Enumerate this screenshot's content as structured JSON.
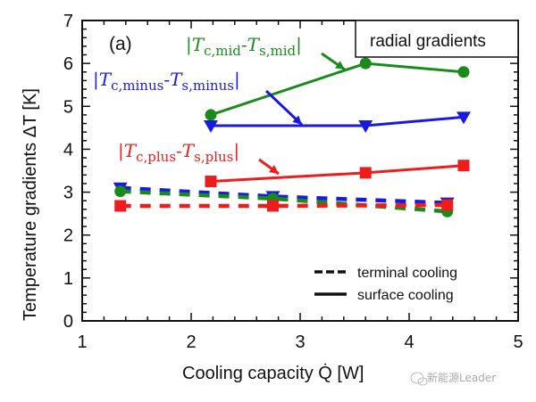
{
  "chart_data": {
    "type": "line",
    "panel_label": "(a)",
    "xlabel": "Cooling capacity Q̇ [W]",
    "ylabel": "Temperature gradients ΔT [K]",
    "xlim": [
      1,
      5
    ],
    "ylim": [
      0,
      7
    ],
    "xticks": [
      "1",
      "2",
      "3",
      "4",
      "5"
    ],
    "yticks": [
      "0",
      "1",
      "2",
      "3",
      "4",
      "5",
      "6",
      "7"
    ],
    "box_label": "radial gradients",
    "legend": {
      "placement": "bottom-right",
      "entries": [
        {
          "label": "terminal cooling",
          "style": "dashed"
        },
        {
          "label": "surface cooling",
          "style": "solid"
        }
      ]
    },
    "series": [
      {
        "name": "|T_c,mid - T_s,mid| surface",
        "group": "mid",
        "style": "solid",
        "marker": "circle",
        "color": "#1a8a1a",
        "x": [
          2.18,
          3.6,
          4.5
        ],
        "y": [
          4.8,
          6.0,
          5.8
        ]
      },
      {
        "name": "|T_c,minus - T_s,minus| surface",
        "group": "minus",
        "style": "solid",
        "marker": "triangle-down",
        "color": "#1a1adf",
        "x": [
          2.18,
          3.6,
          4.5
        ],
        "y": [
          4.55,
          4.55,
          4.75
        ]
      },
      {
        "name": "|T_c,plus - T_s,plus| surface",
        "group": "plus",
        "style": "solid",
        "marker": "square",
        "color": "#ee1c1c",
        "x": [
          2.18,
          3.6,
          4.5
        ],
        "y": [
          3.25,
          3.45,
          3.62
        ]
      },
      {
        "name": "|T_c,minus - T_s,minus| terminal",
        "group": "minus",
        "style": "dashed",
        "marker": "triangle-down",
        "color": "#1a1adf",
        "x": [
          1.35,
          2.75,
          4.35
        ],
        "y": [
          3.1,
          2.9,
          2.75
        ]
      },
      {
        "name": "|T_c,mid - T_s,mid| terminal",
        "group": "mid",
        "style": "dashed",
        "marker": "circle",
        "color": "#1a8a1a",
        "x": [
          1.35,
          2.75,
          4.35
        ],
        "y": [
          3.02,
          2.85,
          2.55
        ]
      },
      {
        "name": "|T_c,plus - T_s,plus| terminal",
        "group": "plus",
        "style": "dashed",
        "marker": "square",
        "color": "#ee1c1c",
        "x": [
          1.35,
          2.75,
          4.35
        ],
        "y": [
          2.68,
          2.68,
          2.7
        ]
      }
    ],
    "annotations": [
      {
        "group": "mid",
        "main": "T",
        "sub1": "c,mid",
        "mid": "-",
        "main2": "T",
        "sub2": "s,mid",
        "color": "#1a8a1a"
      },
      {
        "group": "minus",
        "main": "T",
        "sub1": "c,minus",
        "mid": "-",
        "main2": "T",
        "sub2": "s,minus",
        "color": "#1a1adf"
      },
      {
        "group": "plus",
        "main": "T",
        "sub1": "c,plus",
        "mid": "-",
        "main2": "T",
        "sub2": "s,plus",
        "color": "#ee1c1c"
      }
    ]
  },
  "watermark": "新能源Leader"
}
